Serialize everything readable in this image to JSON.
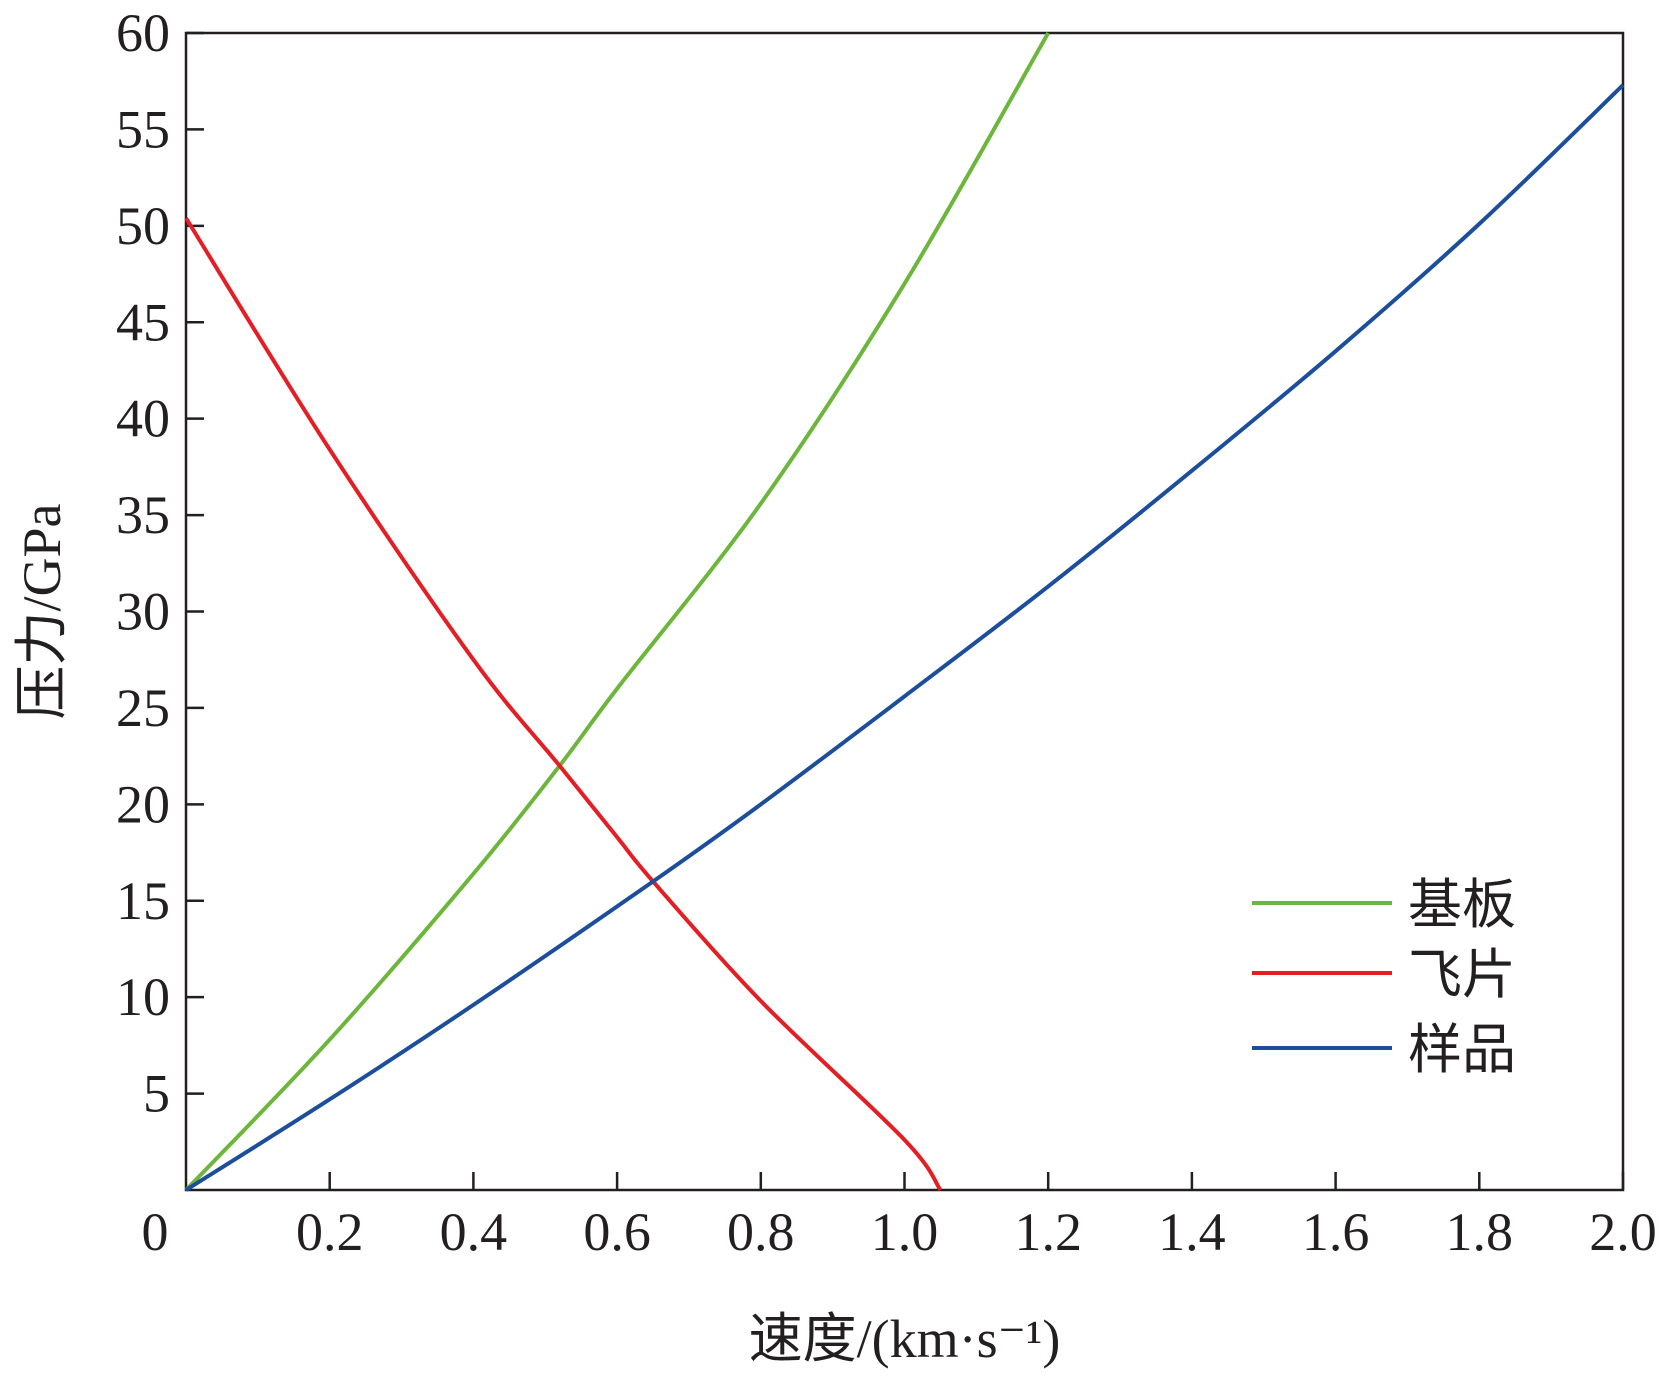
{
  "chart_data": {
    "type": "line",
    "xlabel": "速度/(km·s⁻¹)",
    "ylabel": "压力/GPa",
    "xlim": [
      0,
      2.0
    ],
    "ylim": [
      0,
      60
    ],
    "x_ticks": [
      "0",
      "0.2",
      "0.4",
      "0.6",
      "0.8",
      "1.0",
      "1.2",
      "1.4",
      "1.6",
      "1.8",
      "2.0"
    ],
    "x_tick_values": [
      0,
      0.2,
      0.4,
      0.6,
      0.8,
      1.0,
      1.2,
      1.4,
      1.6,
      1.8,
      2.0
    ],
    "y_ticks": [
      "5",
      "10",
      "15",
      "20",
      "25",
      "30",
      "35",
      "40",
      "45",
      "50",
      "55",
      "60"
    ],
    "y_tick_values": [
      5,
      10,
      15,
      20,
      25,
      30,
      35,
      40,
      45,
      50,
      55,
      60
    ],
    "grid": false,
    "legend_position": "bottom-right",
    "series": [
      {
        "name": "基板",
        "color": "#6cb73b",
        "x": [
          0,
          0.2,
          0.4,
          0.52,
          0.6,
          0.8,
          1.0,
          1.2
        ],
        "y": [
          0,
          7.8,
          16.4,
          22.0,
          26.0,
          35.6,
          47.0,
          60.0
        ]
      },
      {
        "name": "飞片",
        "color": "#e31e25",
        "x": [
          0,
          0.2,
          0.4,
          0.52,
          0.6,
          0.65,
          0.8,
          1.0,
          1.05
        ],
        "y": [
          50.4,
          38.4,
          27.5,
          22.0,
          18.3,
          16.0,
          9.8,
          2.6,
          0
        ]
      },
      {
        "name": "样品",
        "color": "#1c4e9b",
        "x": [
          0,
          0.2,
          0.4,
          0.65,
          0.8,
          1.0,
          1.2,
          1.4,
          1.6,
          1.8,
          2.0
        ],
        "y": [
          0,
          4.7,
          9.6,
          16.0,
          20.0,
          25.6,
          31.3,
          37.3,
          43.5,
          50.1,
          57.3
        ]
      }
    ]
  }
}
